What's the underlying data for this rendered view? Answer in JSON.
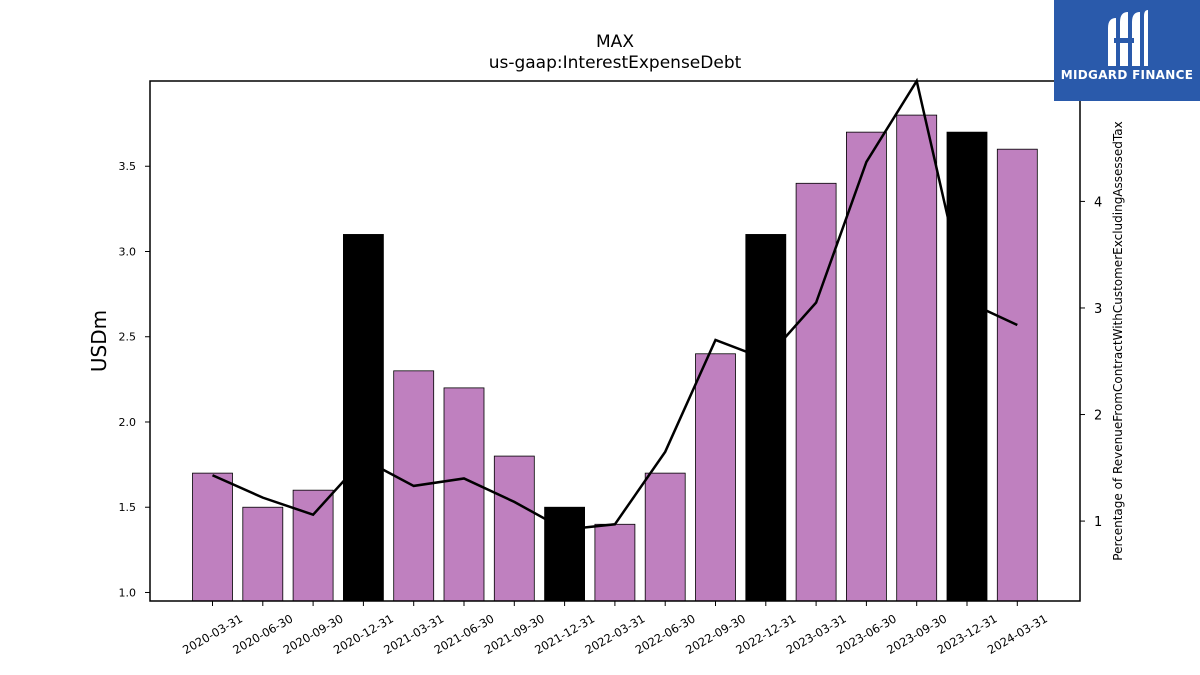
{
  "header": {
    "ticker": "MAX",
    "metric": "us-gaap:InterestExpenseDebt"
  },
  "logo": {
    "text": "MIDGARD FINANCE",
    "icon": "midgard-m-logo-icon",
    "background": "#2a5aab"
  },
  "colors": {
    "bar_default": "#bf80bf",
    "bar_highlight": "#000000",
    "line": "#000000"
  },
  "chart_data": {
    "type": "bar",
    "title": "MAX",
    "subtitle": "us-gaap:InterestExpenseDebt",
    "ylabel": "USDm",
    "y2label": "Percentage of RevenueFromContractWithCustomerExcludingAssessedTax",
    "categories": [
      "2020-03-31",
      "2020-06-30",
      "2020-09-30",
      "2020-12-31",
      "2021-03-31",
      "2021-06-30",
      "2021-09-30",
      "2021-12-31",
      "2022-03-31",
      "2022-06-30",
      "2022-09-30",
      "2022-12-31",
      "2023-03-31",
      "2023-06-30",
      "2023-09-30",
      "2023-12-31",
      "2024-03-31"
    ],
    "series": [
      {
        "type": "bar",
        "axis": "left",
        "values": [
          1.7,
          1.5,
          1.6,
          3.1,
          2.3,
          2.2,
          1.8,
          1.5,
          1.4,
          1.7,
          2.4,
          3.1,
          3.4,
          3.7,
          3.8,
          3.7,
          3.6
        ],
        "highlight": [
          false,
          false,
          false,
          true,
          false,
          false,
          false,
          true,
          false,
          false,
          false,
          true,
          false,
          false,
          false,
          true,
          false
        ]
      },
      {
        "type": "line",
        "axis": "right",
        "values": [
          1.43,
          1.22,
          1.06,
          1.58,
          1.33,
          1.4,
          1.18,
          0.92,
          0.97,
          1.65,
          2.7,
          2.52,
          3.05,
          4.37,
          5.13,
          3.06,
          2.84
        ]
      }
    ],
    "ylim": [
      0.95,
      4.0
    ],
    "y_ticks": [
      1.0,
      1.5,
      2.0,
      2.5,
      3.0,
      3.5
    ],
    "y_tick_labels": [
      "1.0",
      "1.5",
      "2.0",
      "2.5",
      "3.0",
      "3.5"
    ],
    "y2lim": [
      0.25,
      5.13
    ],
    "y2_ticks": [
      1,
      2,
      3,
      4
    ],
    "y2_tick_labels": [
      "1",
      "2",
      "3",
      "4"
    ],
    "grid": false,
    "legend": "none"
  }
}
